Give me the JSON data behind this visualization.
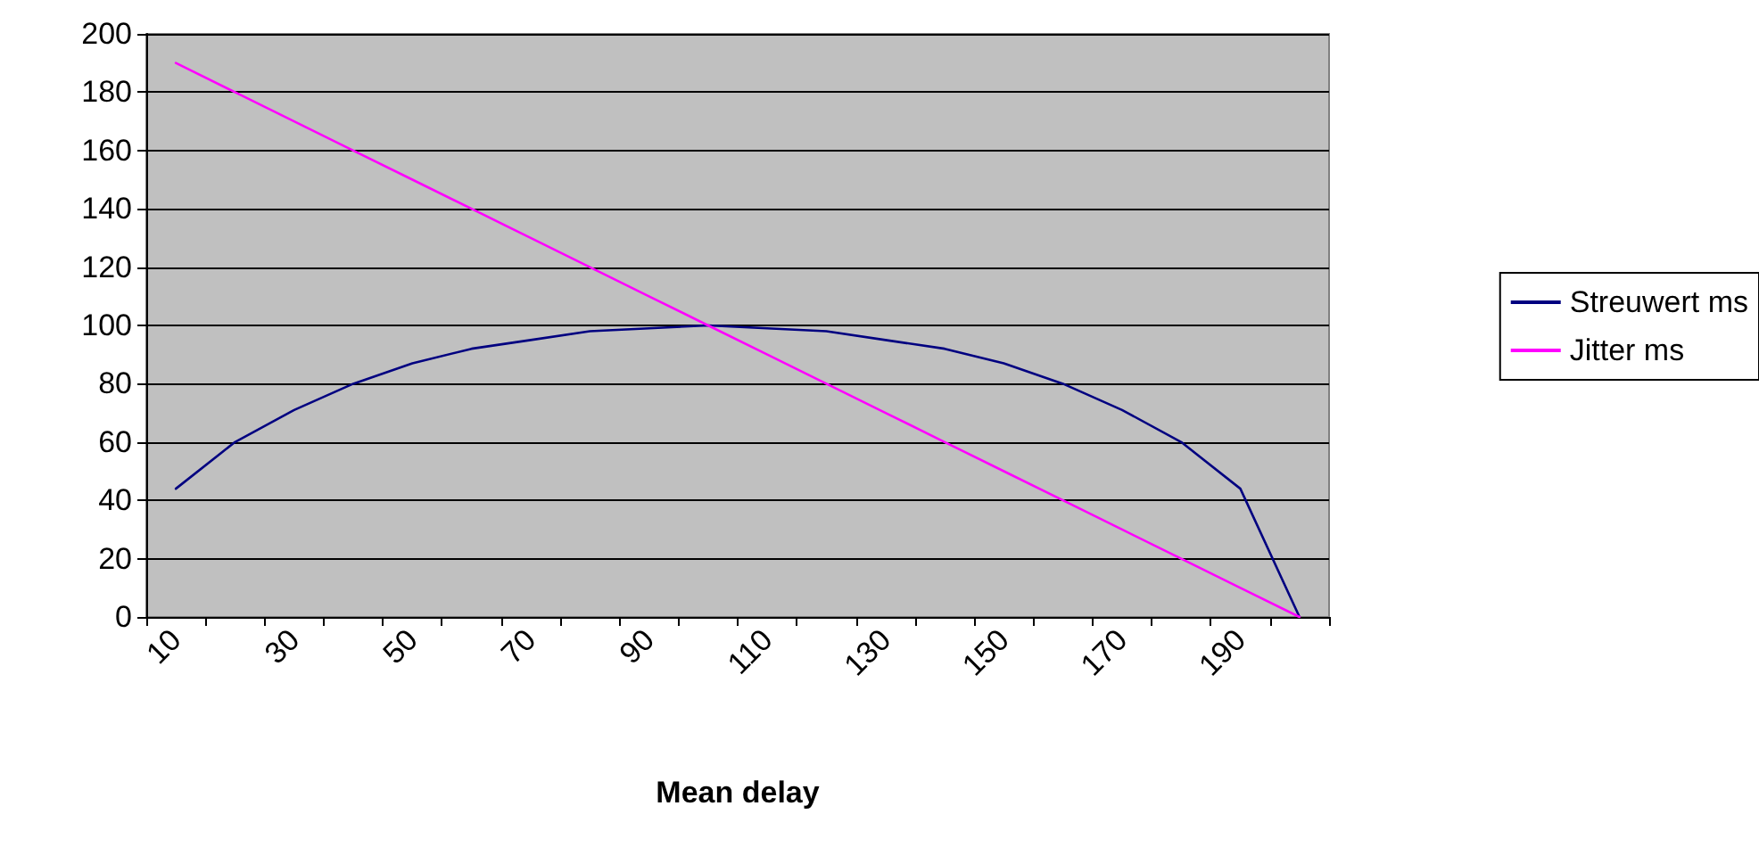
{
  "chart_data": {
    "type": "line",
    "xlabel": "Mean delay",
    "categories": [
      "10",
      null,
      "30",
      null,
      "50",
      null,
      "70",
      null,
      "90",
      null,
      "110",
      null,
      "130",
      null,
      "150",
      null,
      "170",
      null,
      "190",
      null
    ],
    "series": [
      {
        "name": "Streuwert ms",
        "color": "#000080",
        "values": [
          44,
          60,
          71,
          80,
          87,
          92,
          95,
          98,
          99,
          100,
          99,
          98,
          95,
          92,
          87,
          80,
          71,
          60,
          44,
          0
        ]
      },
      {
        "name": "Jitter ms",
        "color": "#ff00ff",
        "values": [
          190,
          180,
          170,
          160,
          150,
          140,
          130,
          120,
          110,
          100,
          90,
          80,
          70,
          60,
          50,
          40,
          30,
          20,
          10,
          0
        ]
      }
    ],
    "ylim": [
      0,
      200
    ],
    "yticks": [
      0,
      20,
      40,
      60,
      80,
      100,
      120,
      140,
      160,
      180,
      200
    ],
    "grid": "y",
    "legend": "right",
    "marker": "none",
    "line_style": "solid"
  }
}
